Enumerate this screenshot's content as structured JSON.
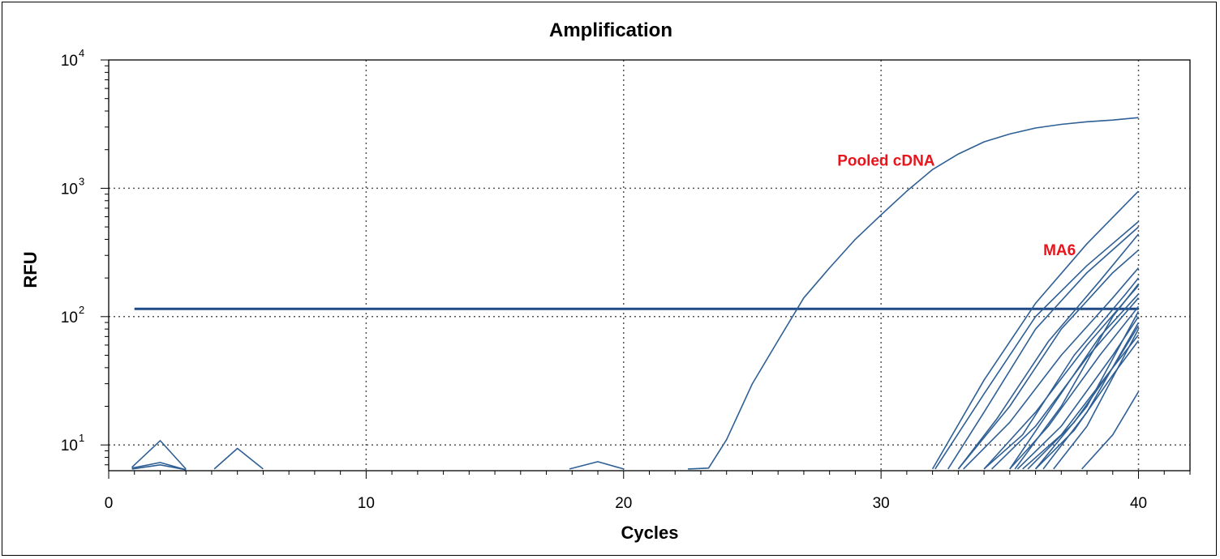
{
  "chart_data": {
    "type": "line",
    "title": "Amplification",
    "xlabel": "Cycles",
    "ylabel": "RFU",
    "xlim": [
      0,
      42
    ],
    "ylim": [
      6.3,
      10000
    ],
    "yscale": "log",
    "xticks": [
      0,
      10,
      20,
      30,
      40
    ],
    "yticks": [
      {
        "value": 10,
        "base": "10",
        "exp": "1"
      },
      {
        "value": 100,
        "base": "10",
        "exp": "2"
      },
      {
        "value": 1000,
        "base": "10",
        "exp": "3"
      },
      {
        "value": 10000,
        "base": "10",
        "exp": "4"
      }
    ],
    "grid": "dotted",
    "line_color": "#2e5f95",
    "annotation_color": "#e8141c",
    "threshold": {
      "value": 115,
      "x_start": 1,
      "x_end": 40
    },
    "annotations": [
      {
        "label": "Pooled cDNA",
        "x": 28.3,
        "y": 1500
      },
      {
        "label": "MA6",
        "x": 36.3,
        "y": 300
      }
    ],
    "series": [
      {
        "x": [
          22.5,
          23.3,
          24,
          25,
          26,
          27,
          28,
          29,
          30,
          31,
          32,
          33,
          34,
          35,
          36,
          37,
          38,
          39,
          40
        ],
        "y": [
          6.5,
          6.6,
          11,
          30,
          65,
          140,
          240,
          400,
          620,
          950,
          1400,
          1850,
          2300,
          2650,
          2950,
          3150,
          3300,
          3400,
          3550
        ]
      },
      {
        "x": [
          0.9,
          2,
          3
        ],
        "y": [
          6.7,
          10.8,
          6.5
        ]
      },
      {
        "x": [
          0.9,
          2,
          3
        ],
        "y": [
          6.6,
          7.3,
          6.4
        ]
      },
      {
        "x": [
          0.9,
          2,
          3
        ],
        "y": [
          6.5,
          7.0,
          6.4
        ]
      },
      {
        "x": [
          4.1,
          5,
          6
        ],
        "y": [
          6.5,
          9.4,
          6.5
        ]
      },
      {
        "x": [
          17.9,
          19,
          20
        ],
        "y": [
          6.5,
          7.4,
          6.5
        ]
      },
      {
        "x": [
          32.0,
          34.0,
          36.0,
          38.0,
          40.0
        ],
        "y": [
          6.5,
          32.0,
          127.0,
          370.0,
          950.0
        ]
      },
      {
        "x": [
          32.1,
          34.0,
          36.0,
          38.0,
          40.0
        ],
        "y": [
          6.5,
          25.0,
          100.0,
          250.0,
          550.0
        ]
      },
      {
        "x": [
          32.6,
          34.0,
          36.0,
          38.0,
          40.0
        ],
        "y": [
          6.5,
          18.0,
          80.0,
          220.0,
          500.0
        ]
      },
      {
        "x": [
          33.0,
          34.5,
          36.5,
          38.5,
          40.0
        ],
        "y": [
          6.5,
          16.0,
          64.0,
          190.0,
          440.0
        ]
      },
      {
        "x": [
          33.0,
          35.0,
          37.0,
          39.0,
          40.0
        ],
        "y": [
          6.5,
          20.0,
          80.0,
          220.0,
          330.0
        ]
      },
      {
        "x": [
          33.2,
          35.0,
          37.0,
          39.0,
          40.0
        ],
        "y": [
          6.5,
          15.0,
          50.0,
          140.0,
          240.0
        ]
      },
      {
        "x": [
          34.0,
          35.5,
          37.5,
          39.5,
          40.0
        ],
        "y": [
          6.5,
          12.0,
          50.0,
          150.0,
          200.0
        ]
      },
      {
        "x": [
          34.0,
          36.0,
          38.0,
          40.0
        ],
        "y": [
          6.5,
          18.0,
          60.0,
          175.0
        ]
      },
      {
        "x": [
          34.3,
          36.0,
          38.0,
          40.0
        ],
        "y": [
          6.5,
          14.0,
          48.0,
          140.0
        ]
      },
      {
        "x": [
          35.0,
          36.5,
          38.5,
          40.0
        ],
        "y": [
          6.5,
          18.0,
          70.0,
          150.0
        ]
      },
      {
        "x": [
          35.0,
          36.5,
          38.5,
          40.0
        ],
        "y": [
          6.5,
          14.0,
          50.0,
          120.0
        ]
      },
      {
        "x": [
          35.3,
          37.0,
          39.0,
          40.0
        ],
        "y": [
          6.5,
          14.0,
          50.0,
          100.0
        ]
      },
      {
        "x": [
          35.5,
          37.0,
          39.0,
          40.0
        ],
        "y": [
          6.5,
          12.0,
          40.0,
          85.0
        ]
      },
      {
        "x": [
          35.7,
          37.5,
          39.0,
          40.0
        ],
        "y": [
          6.5,
          15.0,
          40.0,
          72.0
        ]
      },
      {
        "x": [
          36.0,
          37.5,
          39.0,
          40.0
        ],
        "y": [
          6.5,
          13.0,
          35.0,
          65.0
        ]
      },
      {
        "x": [
          36.3,
          38.0,
          40.0
        ],
        "y": [
          6.5,
          18.0,
          90.0
        ]
      },
      {
        "x": [
          36.7,
          38.0,
          40.0
        ],
        "y": [
          6.5,
          14.0,
          80.0
        ]
      },
      {
        "x": [
          35.2,
          37.0,
          39.0,
          40.0
        ],
        "y": [
          6.5,
          20.0,
          100.0,
          180.0
        ]
      },
      {
        "x": [
          36.0,
          38.0,
          40.0
        ],
        "y": [
          6.5,
          20.0,
          110.0
        ]
      },
      {
        "x": [
          37.8,
          39.0,
          40.0
        ],
        "y": [
          6.5,
          12.0,
          26.0
        ]
      }
    ]
  }
}
